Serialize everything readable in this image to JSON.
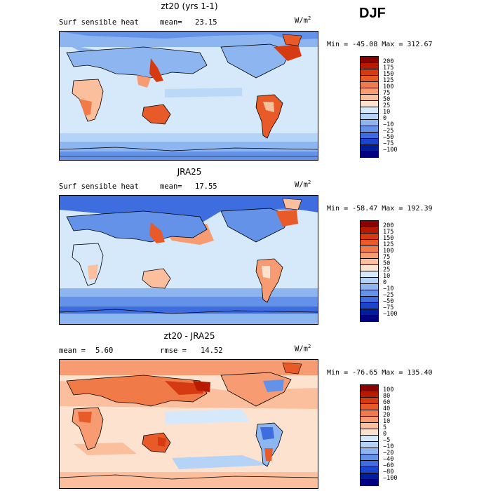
{
  "season": "DJF",
  "units_text": "W/m",
  "units_sup": "2",
  "panels": [
    {
      "title": "zt20 (yrs 1-1)",
      "left_label": "Surf sensible heat",
      "stat_label": "mean=",
      "stat_value": "23.15",
      "minmax": "Min = -45.08 Max = 312.67",
      "colorbar": {
        "labels": [
          "200",
          "175",
          "150",
          "125",
          "100",
          "75",
          "50",
          "25",
          "10",
          "0",
          "−10",
          "−25",
          "−50",
          "−75",
          "−100"
        ],
        "colors": [
          "#8b0000",
          "#b81a00",
          "#d63a10",
          "#e85a28",
          "#f07b48",
          "#f79c72",
          "#fbbf9d",
          "#fde2cf",
          "#d6e9fb",
          "#b5d3f7",
          "#8db5f0",
          "#6492e8",
          "#3e6de0",
          "#1a45cc",
          "#001e9c",
          "#000080"
        ]
      }
    },
    {
      "title": "JRA25",
      "left_label": "Surf sensible heat",
      "stat_label": "mean=",
      "stat_value": "17.55",
      "minmax": "Min = -58.47 Max = 192.39",
      "colorbar": {
        "labels": [
          "200",
          "175",
          "150",
          "125",
          "100",
          "75",
          "50",
          "25",
          "10",
          "0",
          "−10",
          "−25",
          "−50",
          "−75",
          "−100"
        ],
        "colors": [
          "#8b0000",
          "#b81a00",
          "#d63a10",
          "#e85a28",
          "#f07b48",
          "#f79c72",
          "#fbbf9d",
          "#fde2cf",
          "#d6e9fb",
          "#b5d3f7",
          "#8db5f0",
          "#6492e8",
          "#3e6de0",
          "#1a45cc",
          "#001e9c",
          "#000080"
        ]
      }
    },
    {
      "title": "zt20 - JRA25",
      "left_label": "mean =",
      "left_value": "5.60",
      "stat_label": "rmse =",
      "stat_value": "14.52",
      "minmax": "Min = -76.65 Max = 135.40",
      "colorbar": {
        "labels": [
          "100",
          "80",
          "60",
          "40",
          "20",
          "10",
          "5",
          "0",
          "−5",
          "−10",
          "−20",
          "−40",
          "−60",
          "−80",
          "−100"
        ],
        "colors": [
          "#8b0000",
          "#b81a00",
          "#d63a10",
          "#e85a28",
          "#f07b48",
          "#f79c72",
          "#fbbf9d",
          "#fde2cf",
          "#d6e9fb",
          "#b5d3f7",
          "#8db5f0",
          "#6492e8",
          "#3e6de0",
          "#1a45cc",
          "#001e9c",
          "#000080"
        ]
      }
    }
  ]
}
